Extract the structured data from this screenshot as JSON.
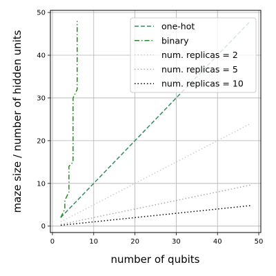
{
  "chart_data": {
    "type": "line",
    "xlabel": "number of qubits",
    "ylabel": "maze size / number of hidden units",
    "xlim": [
      -0.5,
      50.5
    ],
    "ylim": [
      -1.5,
      50.5
    ],
    "xticks": [
      0,
      10,
      20,
      30,
      40,
      50
    ],
    "yticks": [
      0,
      10,
      20,
      30,
      40,
      50
    ],
    "grid": true,
    "legend_position": "top-right",
    "series": [
      {
        "name": "one-hot",
        "color": "#2e8b57",
        "style": "dashed",
        "x": [
          2,
          48
        ],
        "y": [
          2,
          48
        ]
      },
      {
        "name": "binary",
        "color": "#228b22",
        "style": "dashdot",
        "x": [
          2,
          3,
          3,
          4,
          4,
          5,
          5,
          6,
          6
        ],
        "y": [
          2,
          4,
          6,
          8,
          14,
          15,
          30,
          32,
          48
        ]
      },
      {
        "name": "num. replicas = 2",
        "color": "#cccccc",
        "style": "dotted",
        "x": [
          2,
          48
        ],
        "y": [
          1,
          24
        ]
      },
      {
        "name": "num. replicas = 5",
        "color": "#aaaaaa",
        "style": "dotted",
        "x": [
          2,
          48
        ],
        "y": [
          0.4,
          9.6
        ]
      },
      {
        "name": "num. replicas = 10",
        "color": "#000000",
        "style": "dotted",
        "x": [
          2,
          48
        ],
        "y": [
          0.2,
          4.8
        ]
      }
    ]
  }
}
